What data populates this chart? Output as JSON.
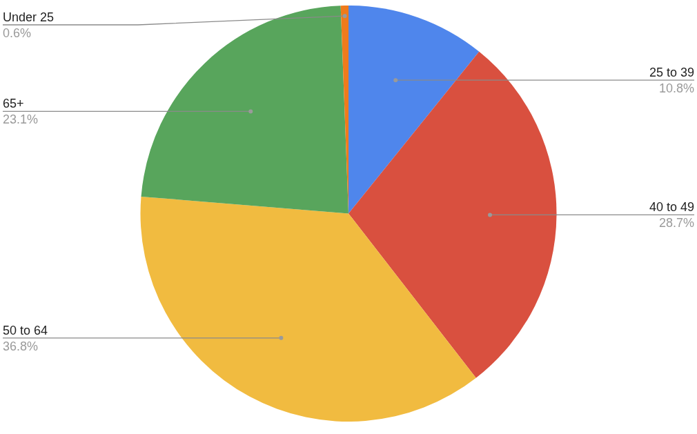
{
  "chart_data": {
    "type": "pie",
    "categories": [
      "25 to 39",
      "40 to 49",
      "50 to 64",
      "65+",
      "Under 25"
    ],
    "values": [
      10.8,
      28.7,
      36.8,
      23.1,
      0.6
    ],
    "colors": [
      "#4f86ec",
      "#d9503f",
      "#f1bb40",
      "#58a55c",
      "#ef7b1c"
    ],
    "value_labels": [
      "10.8%",
      "28.7%",
      "36.8%",
      "23.1%",
      "0.6%"
    ],
    "legend": false
  }
}
